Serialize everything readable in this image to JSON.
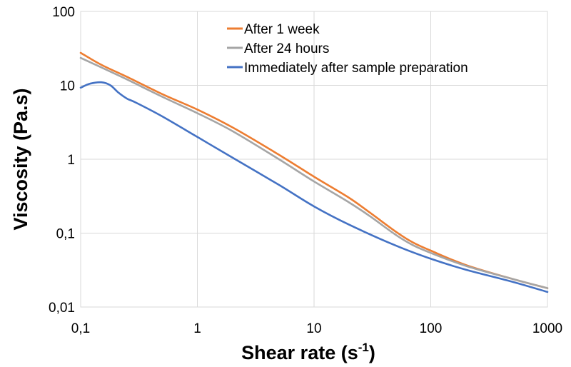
{
  "chart_data": {
    "type": "line",
    "title": "",
    "xlabel": "Shear rate (s",
    "xlabel_superscript": "-1",
    "xlabel_suffix": ")",
    "ylabel": "Viscosity (Pa.s)",
    "x_scale": "log",
    "y_scale": "log",
    "xlim": [
      0.1,
      1000
    ],
    "ylim": [
      0.01,
      100
    ],
    "x_ticks": [
      0.1,
      1,
      10,
      100,
      1000
    ],
    "x_tick_labels": [
      "0,1",
      "1",
      "10",
      "100",
      "1000"
    ],
    "y_ticks": [
      0.01,
      0.1,
      1,
      10,
      100
    ],
    "y_tick_labels": [
      "0,01",
      "0,1",
      "1",
      "10",
      "100"
    ],
    "grid": true,
    "legend_position": "top-center",
    "series": [
      {
        "name": "After 1 week",
        "color": "#ed7d31",
        "x": [
          0.1,
          0.15,
          0.25,
          0.5,
          1,
          2,
          5,
          10,
          20,
          30,
          50,
          70,
          100,
          200,
          500,
          1000
        ],
        "y": [
          27.5,
          19,
          13,
          7.6,
          4.7,
          2.7,
          1.15,
          0.58,
          0.3,
          0.19,
          0.105,
          0.075,
          0.058,
          0.037,
          0.024,
          0.018
        ]
      },
      {
        "name": "After 24 hours",
        "color": "#a5a5a5",
        "x": [
          0.1,
          0.15,
          0.25,
          0.5,
          1,
          2,
          5,
          10,
          20,
          30,
          50,
          70,
          100,
          200,
          500,
          1000
        ],
        "y": [
          23.5,
          17.5,
          12,
          7,
          4.2,
          2.4,
          1.0,
          0.5,
          0.26,
          0.17,
          0.095,
          0.069,
          0.054,
          0.036,
          0.024,
          0.018
        ]
      },
      {
        "name": "Immediately after sample preparation",
        "color": "#4472c4",
        "x": [
          0.1,
          0.12,
          0.15,
          0.18,
          0.21,
          0.25,
          0.3,
          0.5,
          1,
          2,
          5,
          10,
          20,
          50,
          100,
          200,
          500,
          1000
        ],
        "y": [
          9.3,
          10.5,
          11,
          10,
          8,
          6.6,
          5.8,
          3.8,
          2.0,
          1.05,
          0.45,
          0.23,
          0.13,
          0.068,
          0.045,
          0.032,
          0.022,
          0.016
        ]
      }
    ]
  }
}
